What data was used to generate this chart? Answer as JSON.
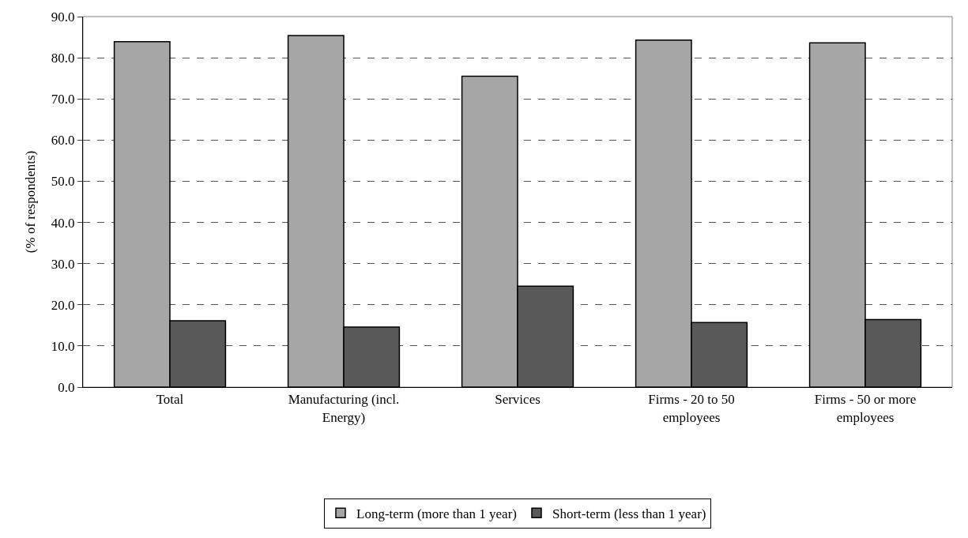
{
  "chart_data": {
    "type": "bar",
    "ylabel": "(% of respondents)",
    "categories": [
      "Total",
      "Manufacturing (incl.\nEnergy)",
      "Services",
      "Firms - 20 to 50\nemployees",
      "Firms - 50 or more\nemployees"
    ],
    "series": [
      {
        "name": "Long-term (more than 1 year)",
        "color": "#a6a6a6",
        "values": [
          83.9,
          85.4,
          75.5,
          84.3,
          83.6
        ]
      },
      {
        "name": "Short-term (less than 1 year)",
        "color": "#595959",
        "values": [
          16.1,
          14.6,
          24.5,
          15.7,
          16.4
        ]
      }
    ],
    "ylim": [
      0,
      90
    ],
    "yticks": [
      {
        "value": 0,
        "label": "0.0"
      },
      {
        "value": 10,
        "label": "10.0"
      },
      {
        "value": 20,
        "label": "20.0"
      },
      {
        "value": 30,
        "label": "30.0"
      },
      {
        "value": 40,
        "label": "40.0"
      },
      {
        "value": 50,
        "label": "50.0"
      },
      {
        "value": 60,
        "label": "60.0"
      },
      {
        "value": 70,
        "label": "70.0"
      },
      {
        "value": 80,
        "label": "80.0"
      },
      {
        "value": 90,
        "label": "90.0"
      }
    ],
    "grid": "y",
    "legend": "bottom"
  }
}
